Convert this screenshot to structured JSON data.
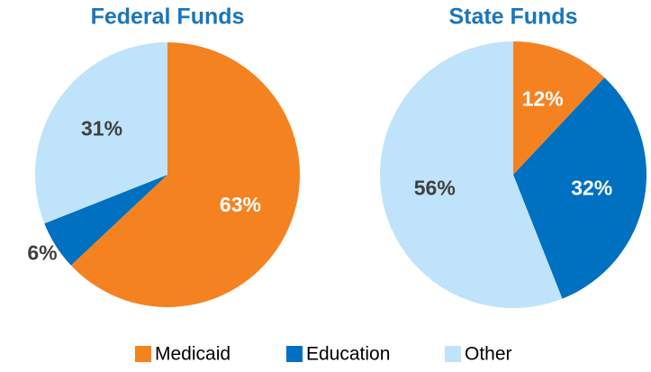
{
  "chart_data": [
    {
      "type": "pie",
      "title": "Federal Funds",
      "categories": [
        "Medicaid",
        "Education",
        "Other"
      ],
      "values": [
        63,
        6,
        31
      ],
      "value_labels": [
        "63%",
        "6%",
        "31%"
      ],
      "colors": [
        "#f58220",
        "#0070c0",
        "#bfe3fa"
      ]
    },
    {
      "type": "pie",
      "title": "State Funds",
      "categories": [
        "Medicaid",
        "Education",
        "Other"
      ],
      "values": [
        12,
        32,
        56
      ],
      "value_labels": [
        "12%",
        "32%",
        "56%"
      ],
      "colors": [
        "#f58220",
        "#0070c0",
        "#bfe3fa"
      ]
    }
  ]
}
